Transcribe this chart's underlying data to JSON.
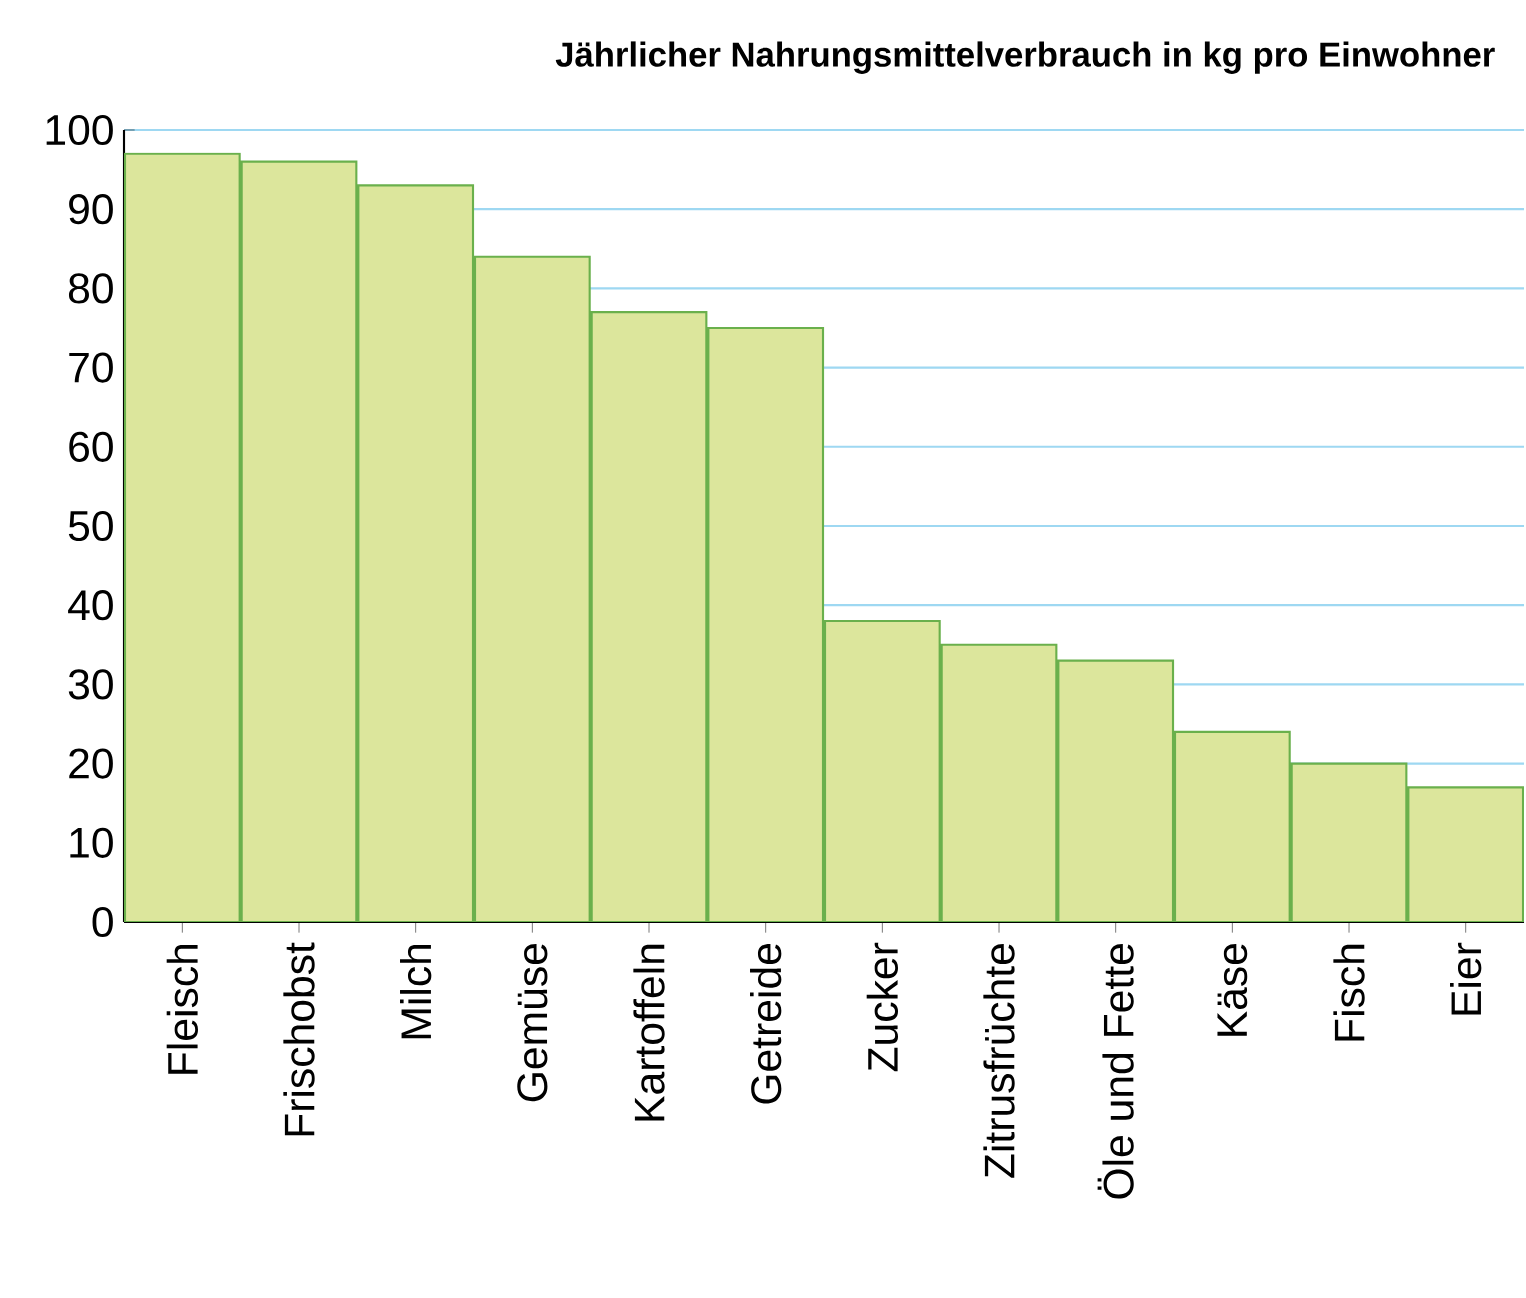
{
  "chart_data": {
    "type": "bar",
    "title": "Jährlicher Nahrungsmittelverbrauch in kg pro Einwohner",
    "categories": [
      "Fleisch",
      "Frischobst",
      "Milch",
      "Gemüse",
      "Kartoffeln",
      "Getreide",
      "Zucker",
      "Zitrusfrüchte",
      "Öle und Fette",
      "Käse",
      "Fisch",
      "Eier"
    ],
    "values": [
      97,
      96,
      93,
      84,
      77,
      75,
      38,
      35,
      33,
      24,
      20,
      17
    ],
    "color": "#dce69c",
    "ylim": [
      0,
      100
    ],
    "yticks": [
      0,
      10,
      20,
      30,
      40,
      50,
      60,
      70,
      80,
      90,
      100
    ],
    "grid": "y"
  }
}
